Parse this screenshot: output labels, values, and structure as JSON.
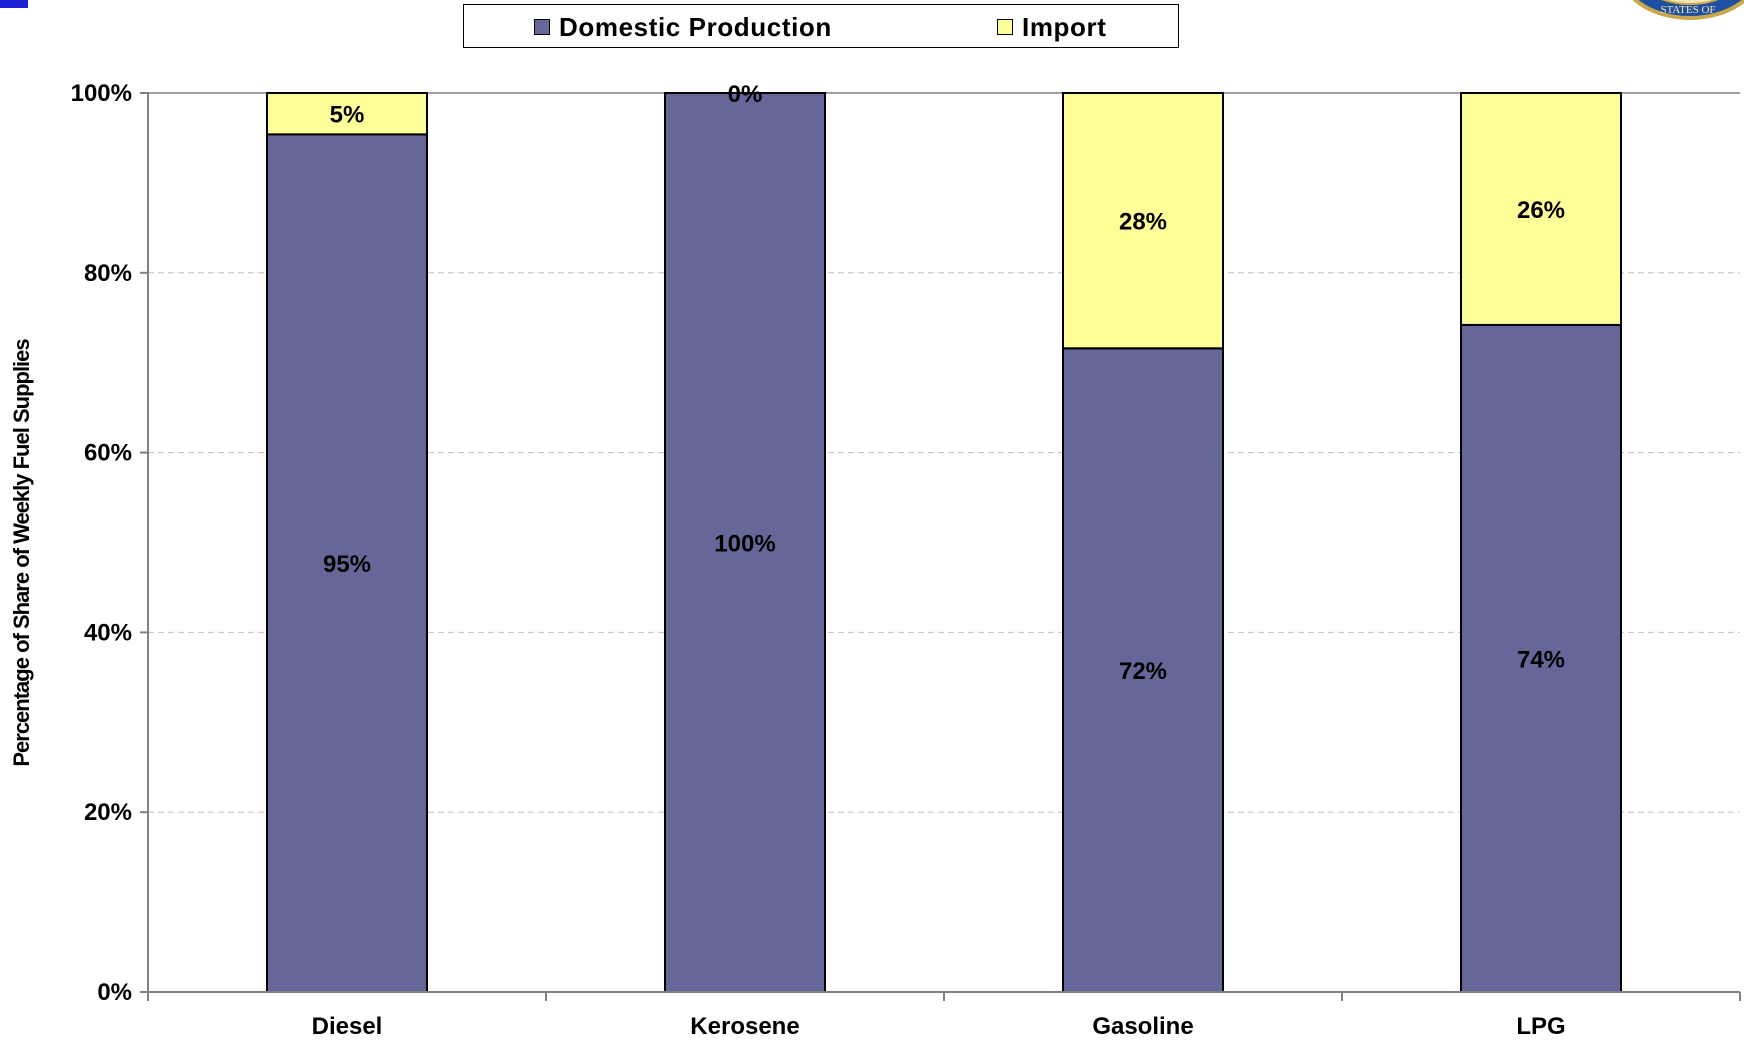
{
  "legend_label_domestic": "Domestic Production",
  "legend_label_import": "Import",
  "colors": {
    "domestic": "#666699",
    "import": "#ffff99",
    "axis": "#808080",
    "grid": "#c0c0c0",
    "title_blue": "#1f1fd6",
    "seal_blue": "#1f4fa0",
    "seal_gold": "#c8a84a"
  },
  "icons": {
    "seal": "agency-seal-icon"
  },
  "chart_data": {
    "type": "bar",
    "stacked": true,
    "categories": [
      "Diesel",
      "Kerosene",
      "Gasoline",
      "LPG"
    ],
    "series": [
      {
        "name": "Domestic Production",
        "values": [
          95.4,
          100,
          71.6,
          74.2
        ],
        "labels": [
          "95%",
          "100%",
          "72%",
          "74%"
        ]
      },
      {
        "name": "Import",
        "values": [
          4.6,
          0,
          28.4,
          25.8
        ],
        "labels": [
          "5%",
          "0%",
          "28%",
          "26%"
        ]
      }
    ],
    "ylabel": "Percentage of Share of Weekly Fuel Supplies",
    "xlabel": "",
    "ylim": [
      0,
      100
    ],
    "yticks": [
      0,
      20,
      40,
      60,
      80,
      100
    ],
    "ytick_labels": [
      "0%",
      "20%",
      "40%",
      "60%",
      "80%",
      "100%"
    ],
    "grid": true,
    "legend": "top-center"
  }
}
